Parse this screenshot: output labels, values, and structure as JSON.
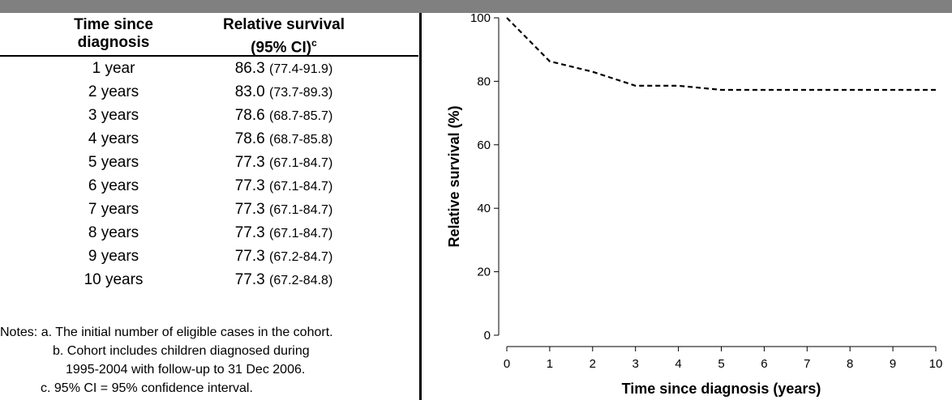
{
  "table": {
    "header_time": [
      "Time since",
      "diagnosis"
    ],
    "header_rs": "Relative survival",
    "header_rs_sub": "(95% CI)",
    "header_rs_sup": "c",
    "rows": [
      {
        "time": "1 year",
        "value": "86.3",
        "ci": "(77.4-91.9)"
      },
      {
        "time": "2 years",
        "value": "83.0",
        "ci": "(73.7-89.3)"
      },
      {
        "time": "3 years",
        "value": "78.6",
        "ci": "(68.7-85.7)"
      },
      {
        "time": "4 years",
        "value": "78.6",
        "ci": "(68.7-85.8)"
      },
      {
        "time": "5 years",
        "value": "77.3",
        "ci": "(67.1-84.7)"
      },
      {
        "time": "6 years",
        "value": "77.3",
        "ci": "(67.1-84.7)"
      },
      {
        "time": "7 years",
        "value": "77.3",
        "ci": "(67.1-84.7)"
      },
      {
        "time": "8 years",
        "value": "77.3",
        "ci": "(67.1-84.7)"
      },
      {
        "time": "9 years",
        "value": "77.3",
        "ci": "(67.2-84.7)"
      },
      {
        "time": "10 years",
        "value": "77.3",
        "ci": "(67.2-84.8)"
      }
    ]
  },
  "notes": {
    "a": "Notes: a. The initial number of eligible cases in the cohort.",
    "b1": "b. Cohort includes children diagnosed during",
    "b2": "1995-2004 with follow-up to 31 Dec 2006.",
    "c": "c. 95% CI = 95% confidence interval."
  },
  "chart_data": {
    "type": "line",
    "xlabel": "Time since diagnosis (years)",
    "ylabel": "Relative survival (%)",
    "xlim": [
      0,
      10
    ],
    "ylim": [
      0,
      100
    ],
    "xticks": [
      0,
      1,
      2,
      3,
      4,
      5,
      6,
      7,
      8,
      9,
      10
    ],
    "yticks": [
      0,
      20,
      40,
      60,
      80,
      100
    ],
    "grid": false,
    "line_style": "dashed",
    "line_color": "#000000",
    "x": [
      0,
      1,
      2,
      3,
      4,
      5,
      6,
      7,
      8,
      9,
      10
    ],
    "y": [
      100,
      86.3,
      83.0,
      78.6,
      78.6,
      77.3,
      77.3,
      77.3,
      77.3,
      77.3,
      77.3
    ]
  }
}
